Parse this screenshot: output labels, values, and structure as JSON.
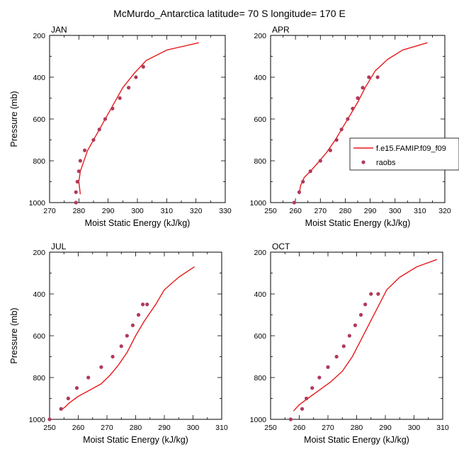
{
  "figure": {
    "title": "McMurdo_Antarctica  latitude= 70 S longitude= 170 E"
  },
  "legend": {
    "model_label": "f.e15.FAMIP.f09_f09",
    "obs_label": "raobs",
    "model_color": "#e8191a",
    "obs_color": "#b03a5b",
    "placement": "right of APR panel"
  },
  "chart_data": [
    {
      "type": "line",
      "panel": "JAN",
      "xlabel": "Moist Static Energy (kJ/kg)",
      "ylabel": "Pressure (mb)",
      "xlim": [
        270,
        330
      ],
      "ylim": [
        1000,
        200
      ],
      "y_reversed": true,
      "xticks": [
        270,
        280,
        290,
        300,
        310,
        320,
        330
      ],
      "yticks": [
        200,
        400,
        600,
        800,
        1000
      ],
      "series": [
        {
          "role": "model",
          "x": [
            280.5,
            280,
            280.5,
            283,
            287,
            291,
            295,
            299,
            303,
            310,
            321
          ],
          "y": [
            960,
            900,
            850,
            750,
            650,
            550,
            450,
            380,
            320,
            270,
            235
          ]
        },
        {
          "role": "obs",
          "x": [
            279,
            279,
            279.5,
            280,
            280.5,
            282,
            285,
            287,
            289,
            291.5,
            294,
            297,
            299.5,
            302
          ],
          "y": [
            1000,
            950,
            900,
            850,
            800,
            750,
            700,
            650,
            600,
            550,
            500,
            450,
            400,
            350
          ]
        }
      ]
    },
    {
      "type": "line",
      "panel": "APR",
      "xlabel": "Moist Static Energy (kJ/kg)",
      "ylabel": "",
      "xlim": [
        250,
        320
      ],
      "ylim": [
        1000,
        200
      ],
      "y_reversed": true,
      "xticks": [
        250,
        260,
        270,
        280,
        290,
        300,
        310,
        320
      ],
      "yticks": [
        200,
        400,
        600,
        800,
        1000
      ],
      "series": [
        {
          "role": "model",
          "x": [
            261.5,
            262,
            263.5,
            266,
            269,
            272.5,
            276,
            279,
            282,
            285,
            288,
            292,
            297,
            303,
            313
          ],
          "y": [
            960,
            920,
            880,
            850,
            810,
            760,
            700,
            640,
            580,
            520,
            450,
            370,
            315,
            270,
            235
          ]
        },
        {
          "role": "obs",
          "x": [
            259.5,
            261.5,
            263,
            266,
            270,
            274,
            276.5,
            278.5,
            281,
            283,
            285,
            287,
            289.5,
            293
          ],
          "y": [
            1000,
            950,
            900,
            850,
            800,
            750,
            700,
            650,
            600,
            550,
            500,
            450,
            400,
            400
          ]
        }
      ]
    },
    {
      "type": "line",
      "panel": "JUL",
      "xlabel": "Moist Static Energy (kJ/kg)",
      "ylabel": "Pressure (mb)",
      "xlim": [
        250,
        310
      ],
      "ylim": [
        1000,
        200
      ],
      "y_reversed": true,
      "xticks": [
        250,
        260,
        270,
        280,
        290,
        300,
        310
      ],
      "yticks": [
        200,
        400,
        600,
        800,
        1000
      ],
      "series": [
        {
          "role": "model",
          "x": [
            254.5,
            255.5,
            257,
            260,
            264,
            268,
            271,
            274,
            277,
            280,
            283,
            287,
            290,
            295,
            300.5
          ],
          "y": [
            950,
            940,
            920,
            890,
            860,
            830,
            790,
            740,
            680,
            600,
            530,
            450,
            380,
            320,
            270
          ]
        },
        {
          "role": "obs",
          "x": [
            250,
            254,
            256.5,
            259.5,
            263.5,
            268,
            272,
            275,
            277,
            279,
            281,
            282.5,
            284
          ],
          "y": [
            1000,
            950,
            900,
            850,
            800,
            750,
            700,
            650,
            600,
            550,
            500,
            450,
            450
          ]
        }
      ]
    },
    {
      "type": "line",
      "panel": "OCT",
      "xlabel": "Moist Static Energy (kJ/kg)",
      "ylabel": "",
      "xlim": [
        250,
        310
      ],
      "ylim": [
        1000,
        200
      ],
      "y_reversed": true,
      "xticks": [
        250,
        260,
        270,
        280,
        290,
        300,
        310
      ],
      "yticks": [
        200,
        400,
        600,
        800,
        1000
      ],
      "series": [
        {
          "role": "model",
          "x": [
            258,
            260,
            263,
            267,
            271,
            275,
            278.5,
            281.5,
            284.5,
            287.5,
            290.5,
            295,
            301,
            308
          ],
          "y": [
            960,
            930,
            900,
            860,
            820,
            770,
            700,
            620,
            540,
            460,
            380,
            320,
            270,
            235
          ]
        },
        {
          "role": "obs",
          "x": [
            257,
            261,
            262.5,
            264.5,
            267,
            270,
            273,
            275.5,
            277.5,
            279.5,
            281.5,
            283,
            285,
            287.5
          ],
          "y": [
            1000,
            950,
            900,
            850,
            800,
            750,
            700,
            650,
            600,
            550,
            500,
            450,
            400,
            400
          ]
        }
      ]
    }
  ]
}
